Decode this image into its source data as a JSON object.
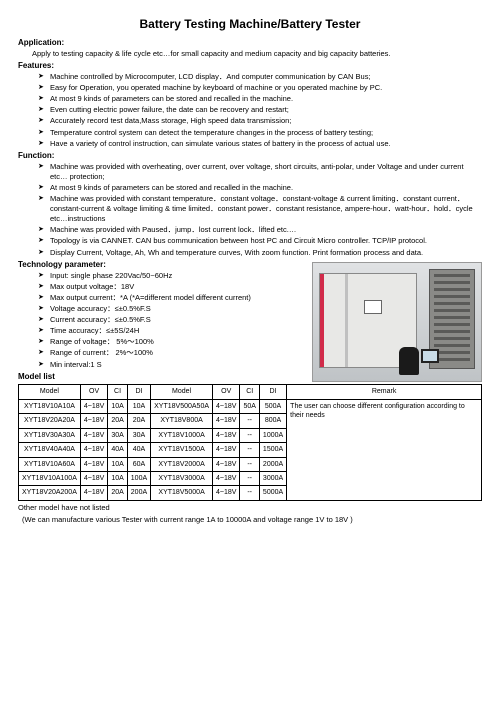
{
  "title": "Battery Testing Machine/Battery Tester",
  "sections": {
    "application": {
      "head": "Application:",
      "text": "Apply to testing capacity & life cycle etc…for small capacity and medium capacity and big capacity batteries."
    },
    "features": {
      "head": "Features:",
      "items": [
        "Machine controlled by Microcomputer, LCD display．And computer communication by CAN Bus;",
        "Easy for Operation, you operated machine by keyboard of machine or you operated machine by PC.",
        "At most 9 kinds of parameters can be stored and recalled in the machine.",
        "Even cutting electric power failure, the date can be recovery and restart;",
        "Accurately record test data,Mass storage, High speed data transmission;",
        "Temperature control system can detect the temperature changes in the process of battery testing;",
        "Have a variety of control instruction, can simulate various states of battery in the process of actual use."
      ]
    },
    "function": {
      "head": "Function:",
      "items": [
        "Machine was provided with overheating, over current, over voltage, short circuits, anti-polar, under Voltage and under current etc… protection;",
        "At most 9 kinds of parameters can be stored and recalled in the machine.",
        "Machine was provided with constant temperature．constant voltage．constant-voltage & current limiting．constant current．constant-current & voltage limiting & time limited．constant power．constant resistance, ampere-hour．watt-hour．hold．cycle etc…instructions",
        "Machine was provided with Paused．jump．lost current lock．lifted etc.…",
        "Topology is via CANNET. CAN bus communication between host PC and Circuit Micro controller. TCP/IP protocol.",
        "Display Current, Voltage, Ah, Wh and temperature curves, With zoom function. Print formation process and data."
      ]
    },
    "techparam": {
      "head": "Technology parameter:",
      "items": [
        "Input: single phase 220Vac/50~60Hz",
        "Max output voltage：18V",
        "Max output current：*A (*A=different model different current)",
        "Voltage accuracy：≤±0.5%F.S",
        "Current accuracy：≤±0.5%F.S",
        "Time accuracy：≤±5S/24H",
        "Range of voltage： 5%～100%",
        "Range of current： 2%～100%",
        "Min interval:1 S"
      ]
    }
  },
  "model": {
    "head": "Model list",
    "columns": [
      "Model",
      "OV",
      "CI",
      "DI",
      "Model",
      "OV",
      "CI",
      "DI",
      "Remark"
    ],
    "rows": [
      [
        "XYT18V10A10A",
        "4~18V",
        "10A",
        "10A",
        "XYT18V500A50A",
        "4~18V",
        "50A",
        "500A"
      ],
      [
        "XYT18V20A20A",
        "4~18V",
        "20A",
        "20A",
        "XYT18V800A",
        "4~18V",
        "--",
        "800A"
      ],
      [
        "XYT18V30A30A",
        "4~18V",
        "30A",
        "30A",
        "XYT18V1000A",
        "4~18V",
        "--",
        "1000A"
      ],
      [
        "XYT18V40A40A",
        "4~18V",
        "40A",
        "40A",
        "XYT18V1500A",
        "4~18V",
        "--",
        "1500A"
      ],
      [
        "XYT18V10A60A",
        "4~18V",
        "10A",
        "60A",
        "XYT18V2000A",
        "4~18V",
        "--",
        "2000A"
      ],
      [
        "XYT18V10A100A",
        "4~18V",
        "10A",
        "100A",
        "XYT18V3000A",
        "4~18V",
        "--",
        "3000A"
      ],
      [
        "XYT18V20A200A",
        "4~18V",
        "20A",
        "200A",
        "XYT18V5000A",
        "4~18V",
        "--",
        "5000A"
      ]
    ],
    "remark": "The user can choose different configuration according to their needs"
  },
  "footer": {
    "l1": "Other model have not listed",
    "l2": "(We can manufacture various Tester with current range 1A to 10000A and voltage range 1V to 18V )"
  }
}
